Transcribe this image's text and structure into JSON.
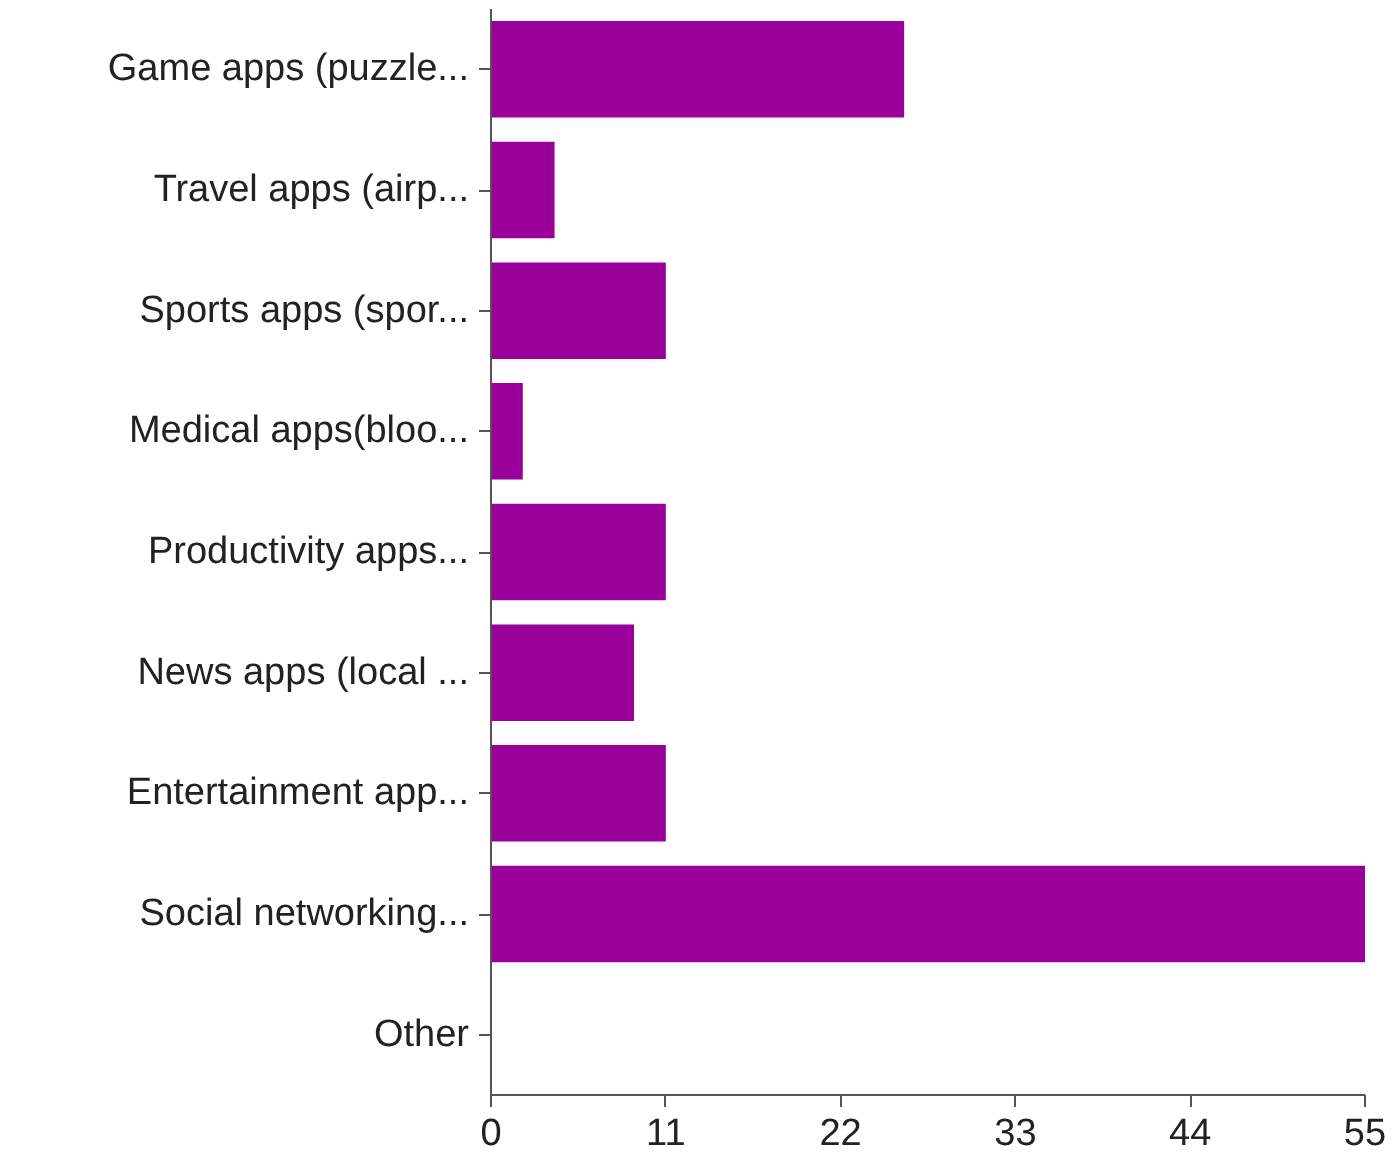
{
  "chart_data": {
    "type": "bar",
    "orientation": "horizontal",
    "categories": [
      "Game apps (puzzle...",
      "Travel apps (airp...",
      "Sports apps (spor...",
      "Medical apps(bloo...",
      "Productivity apps...",
      "News apps (local ...",
      "Entertainment app...",
      "Social networking...",
      "Other"
    ],
    "values": [
      26,
      4,
      11,
      2,
      11,
      9,
      11,
      55,
      0
    ],
    "color": "#990099",
    "xlim": [
      0,
      55
    ],
    "xticks": [
      0,
      11,
      22,
      33,
      44,
      55
    ],
    "grid": false
  }
}
